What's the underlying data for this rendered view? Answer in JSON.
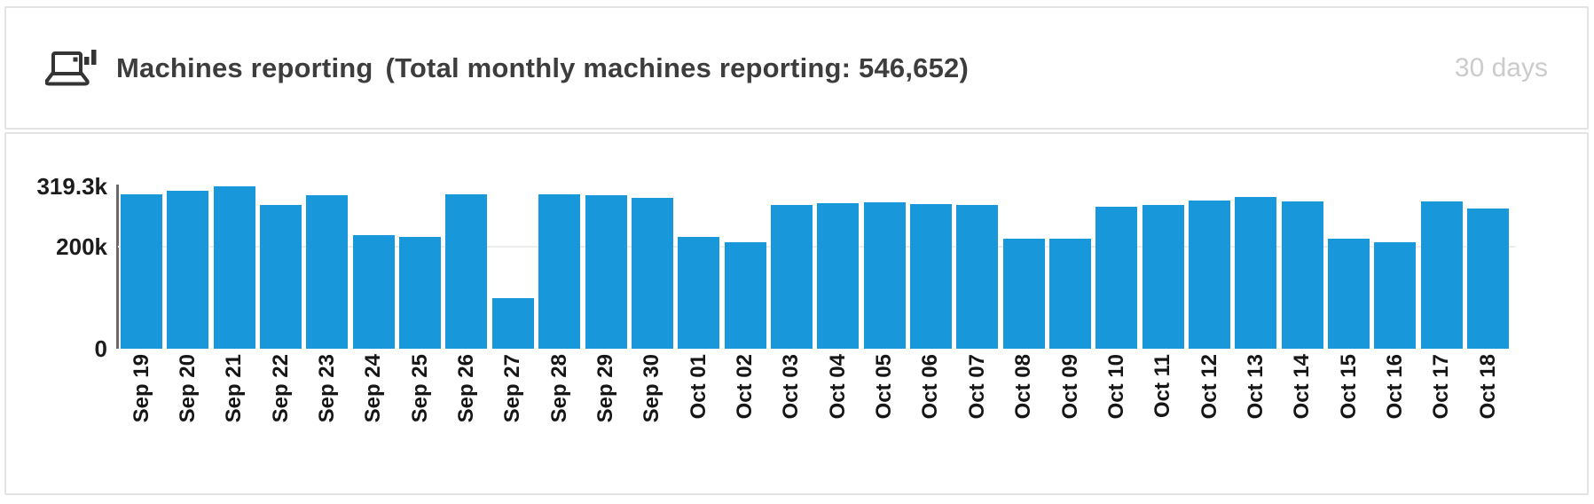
{
  "header": {
    "icon": "machines-reporting-icon",
    "title": "Machines reporting",
    "total_label": "(Total monthly machines reporting: 546,652)",
    "period": "30 days"
  },
  "chart_data": {
    "type": "bar",
    "title": "Machines reporting",
    "xlabel": "",
    "ylabel": "",
    "legend": "none",
    "grid": "single horizontal gridline at 200k",
    "ylim": [
      0,
      319300
    ],
    "ymax": 319300,
    "bar_color": "#1898db",
    "axis_color": "#6a6a6a",
    "yticks": [
      {
        "label": "319.3k",
        "value": 319300,
        "gridline": false
      },
      {
        "label": "200k",
        "value": 200000,
        "gridline": true
      },
      {
        "label": "0",
        "value": 0,
        "gridline": false
      }
    ],
    "categories": [
      "Sep 19",
      "Sep 20",
      "Sep 21",
      "Sep 22",
      "Sep 23",
      "Sep 24",
      "Sep 25",
      "Sep 26",
      "Sep 27",
      "Sep 28",
      "Sep 29",
      "Sep 30",
      "Oct 01",
      "Oct 02",
      "Oct 03",
      "Oct 04",
      "Oct 05",
      "Oct 06",
      "Oct 07",
      "Oct 08",
      "Oct 09",
      "Oct 10",
      "Oct 11",
      "Oct 12",
      "Oct 13",
      "Oct 14",
      "Oct 15",
      "Oct 16",
      "Oct 17",
      "Oct 18"
    ],
    "values": [
      303000,
      310000,
      319300,
      282000,
      301000,
      224000,
      220000,
      303000,
      99000,
      304000,
      302000,
      296000,
      219000,
      209000,
      283000,
      287000,
      288000,
      285000,
      283000,
      217000,
      216000,
      280000,
      283000,
      292000,
      299000,
      289000,
      217000,
      209000,
      289000,
      275000
    ]
  }
}
